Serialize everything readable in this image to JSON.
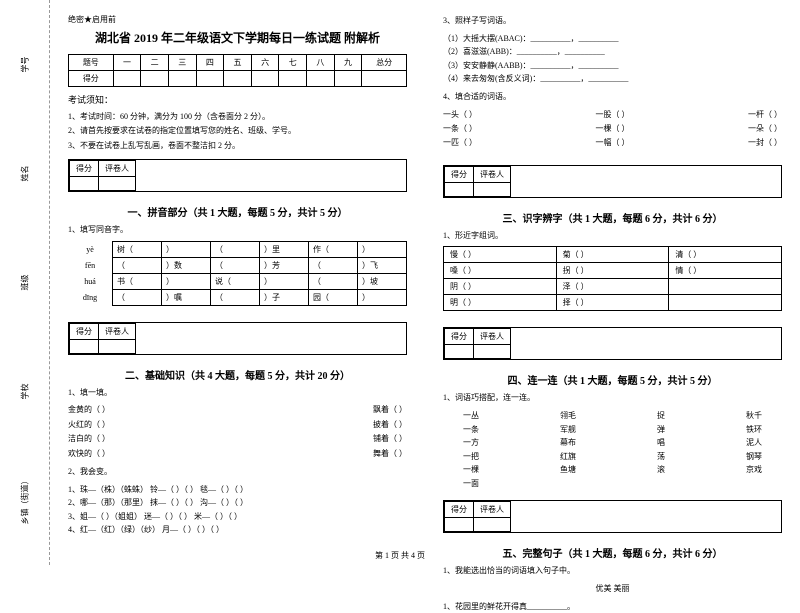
{
  "margin": {
    "fields": [
      "乡镇（街道）",
      "学校",
      "班级",
      "姓名",
      "学号"
    ],
    "dash_labels": [
      "剪",
      "切",
      "线",
      "内",
      "不",
      "答",
      "题"
    ]
  },
  "classification": "绝密★启用前",
  "title": "湖北省 2019 年二年级语文下学期每日一练试题 附解析",
  "score_table": {
    "row1": [
      "题号",
      "一",
      "二",
      "三",
      "四",
      "五",
      "六",
      "七",
      "八",
      "九",
      "总分"
    ],
    "row2_label": "得分"
  },
  "notes_title": "考试须知：",
  "notes": [
    "1、考试时间：60 分钟，满分为 100 分（含卷面分 2 分）。",
    "2、请首先按要求在试卷的指定位置填写您的姓名、班级、学号。",
    "3、不要在试卷上乱写乱画，卷面不整洁扣 2 分。"
  ],
  "scorer_labels": [
    "得分",
    "评卷人"
  ],
  "sec1": {
    "title": "一、拼音部分（共 1 大题，每题 5 分，共计 5 分）",
    "q": "1、填写同音字。",
    "rows": [
      {
        "py": "yè",
        "cells": [
          "树（",
          "）",
          "（",
          "）里",
          "作（",
          "）"
        ]
      },
      {
        "py": "fēn",
        "cells": [
          "（",
          "）数",
          "（",
          "）芳",
          "（",
          "）飞"
        ]
      },
      {
        "py": "huá",
        "cells": [
          "书（",
          "）",
          "说（",
          "）",
          "（",
          "）坡"
        ]
      },
      {
        "py": "dīng",
        "cells": [
          "（",
          "）嘱",
          "（",
          "）子",
          "园（",
          "）"
        ]
      }
    ]
  },
  "sec2": {
    "title": "二、基础知识（共 4 大题，每题 5 分，共计 20 分）",
    "q1": "1、填一填。",
    "q1_rows": [
      [
        "金黄的（        ）",
        "飘着（        ）"
      ],
      [
        "火红的（        ）",
        "披着（        ）"
      ],
      [
        "洁白的（        ）",
        "铺着（        ）"
      ],
      [
        "欢快的（        ）",
        "舞着（        ）"
      ]
    ],
    "q2": "2、我会变。",
    "q2_rows": [
      "1、珠—（株）（蛛蛛）   铃—（    ）（        ）   毯—（    ）（        ）",
      "2、哪—（那）（那里）   抹—（    ）（        ）   沟—（    ）（        ）",
      "3、姐—（    ）（姐姐）   迷—（    ）（        ）   米—（    ）（        ）",
      "4、红—（红）（绿）（纱）   月—（    ）（        ）（        ）"
    ]
  },
  "sec2b": {
    "q3": "3、照样子写词语。",
    "q3_rows": [
      "（1）大摇大摆(ABAC)：__________，__________",
      "（2）喜滋滋(ABB)：__________，__________",
      "（3）安安静静(AABB)：__________，__________",
      "（4）来去匆匆(含反义词)：__________，__________"
    ],
    "q4": "4、填合适的词语。",
    "q4_rows": [
      [
        "一头（        ）",
        "一股（        ）",
        "一杆（        ）"
      ],
      [
        "一条（        ）",
        "一棵（        ）",
        "一朵（        ）"
      ],
      [
        "一匹（        ）",
        "一幅（        ）",
        "一封（        ）"
      ]
    ]
  },
  "sec3": {
    "title": "三、识字辨字（共 1 大题，每题 6 分，共计 6 分）",
    "q": "1、形近字组词。",
    "table": [
      [
        "慢（        ）",
        "菊（        ）",
        "清（        ）"
      ],
      [
        "嗓（        ）",
        "拐（        ）",
        "情（        ）"
      ],
      [
        "阴（        ）",
        "泽（        ）",
        "",
        ""
      ],
      [
        "明（        ）",
        "择（        ）",
        "",
        ""
      ]
    ]
  },
  "sec4": {
    "title": "四、连一连（共 1 大题，每题 5 分，共计 5 分）",
    "q": "1、词语巧搭配，连一连。",
    "cols": [
      [
        "一丛",
        "一条",
        "一方",
        "一把",
        "一棵",
        "一面"
      ],
      [
        "翎毛",
        "军舰",
        "幕布",
        "红旗",
        "鱼塘",
        ""
      ],
      [
        "捉",
        "弹",
        "唱",
        "荡",
        "滚",
        ""
      ],
      [
        "秋千",
        "铁环",
        "泥人",
        "钢琴",
        "京戏",
        ""
      ]
    ]
  },
  "sec5": {
    "title": "五、完整句子（共 1 大题，每题 6 分，共计 6 分）",
    "q": "1、我能选出恰当的词语填入句子中。",
    "words": "优美        美丽",
    "sentence": "1、花园里的鲜花开得真__________。"
  },
  "page_num": "第 1 页 共 4 页"
}
